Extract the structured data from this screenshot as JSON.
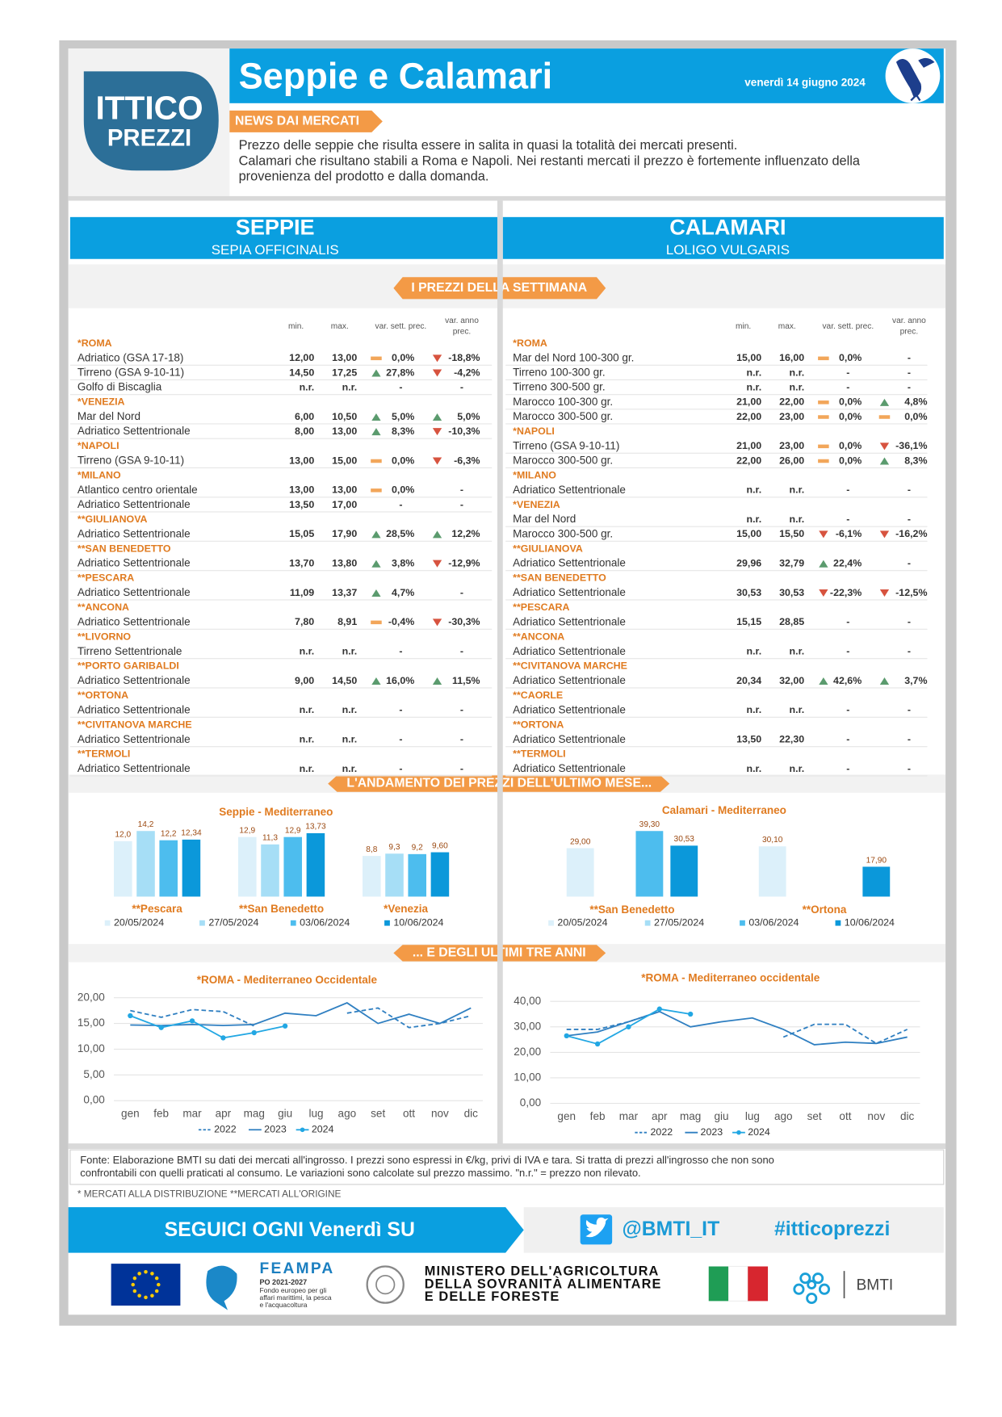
{
  "header": {
    "logo_top": "ITTICO",
    "logo_bottom": "PREZZI",
    "title": "Seppie e Calamari",
    "date": "venerdì 14 giugno 2024"
  },
  "news": {
    "label": "NEWS DAI MERCATI",
    "lines": [
      "Prezzo delle seppie che risulta essere in salita in quasi la totalità dei mercati presenti.",
      "Calamari che risultano stabili a Roma e Napoli. Nei restanti mercati il prezzo è fortemente influenzato della",
      "provenienza del prodotto e dalla domanda."
    ]
  },
  "sections": {
    "seppie": {
      "title": "SEPPIE",
      "subtitle": "SEPIA OFFICINALIS"
    },
    "calamari": {
      "title": "CALAMARI",
      "subtitle": "LOLIGO VULGARIS"
    }
  },
  "week_label": "I PREZZI DELLA SETTIMANA",
  "tables": {
    "seppie": {
      "columns": {
        "min": "min.",
        "max": "max.",
        "week": "var. sett. prec.",
        "year": [
          "var. anno",
          "prec."
        ]
      },
      "rows": [
        {
          "market": "*ROMA"
        },
        {
          "name": "Adriatico (GSA 17-18)",
          "min": "12,00",
          "max": "13,00",
          "week": {
            "trend": "flat",
            "text": "0,0%"
          },
          "year": {
            "trend": "down",
            "text": "-18,8%"
          }
        },
        {
          "name": "Tirreno (GSA 9-10-11)",
          "min": "14,50",
          "max": "17,25",
          "week": {
            "trend": "up",
            "text": "27,8%"
          },
          "year": {
            "trend": "down",
            "text": "-4,2%"
          }
        },
        {
          "name": "Golfo di Biscaglia",
          "min": "n.r.",
          "max": "n.r.",
          "week": "-",
          "year": "-"
        },
        {
          "market": "*VENEZIA"
        },
        {
          "name": "Mar del Nord",
          "min": "6,00",
          "max": "10,50",
          "week": {
            "trend": "up",
            "text": "5,0%"
          },
          "year": {
            "trend": "up",
            "text": "5,0%"
          }
        },
        {
          "name": "Adriatico Settentrionale",
          "min": "8,00",
          "max": "13,00",
          "week": {
            "trend": "up",
            "text": "8,3%"
          },
          "year": {
            "trend": "down",
            "text": "-10,3%"
          }
        },
        {
          "market": "*NAPOLI"
        },
        {
          "name": "Tirreno (GSA 9-10-11)",
          "min": "13,00",
          "max": "15,00",
          "week": {
            "trend": "flat",
            "text": "0,0%"
          },
          "year": {
            "trend": "down",
            "text": "-6,3%"
          }
        },
        {
          "market": "*MILANO"
        },
        {
          "name": "Atlantico centro orientale",
          "min": "13,00",
          "max": "13,00",
          "week": {
            "trend": "flat",
            "text": "0,0%"
          },
          "year": "-"
        },
        {
          "name": "Adriatico Settentrionale",
          "min": "13,50",
          "max": "17,00",
          "week": "-",
          "year": "-"
        },
        {
          "market": "**GIULIANOVA"
        },
        {
          "name": "Adriatico Settentrionale",
          "min": "15,05",
          "max": "17,90",
          "week": {
            "trend": "up",
            "text": "28,5%"
          },
          "year": {
            "trend": "up",
            "text": "12,2%"
          }
        },
        {
          "market": "**SAN BENEDETTO"
        },
        {
          "name": "Adriatico Settentrionale",
          "min": "13,70",
          "max": "13,80",
          "week": {
            "trend": "up",
            "text": "3,8%"
          },
          "year": {
            "trend": "down",
            "text": "-12,9%"
          }
        },
        {
          "market": "**PESCARA"
        },
        {
          "name": "Adriatico Settentrionale",
          "min": "11,09",
          "max": "13,37",
          "week": {
            "trend": "up",
            "text": "4,7%"
          },
          "year": "-"
        },
        {
          "market": "**ANCONA"
        },
        {
          "name": "Adriatico Settentrionale",
          "min": "7,80",
          "max": "8,91",
          "week": {
            "trend": "flat",
            "text": "-0,4%"
          },
          "year": {
            "trend": "down",
            "text": "-30,3%"
          }
        },
        {
          "market": "**LIVORNO"
        },
        {
          "name": "Tirreno Settentrionale",
          "min": "n.r.",
          "max": "n.r.",
          "week": "-",
          "year": "-"
        },
        {
          "market": "**PORTO GARIBALDI"
        },
        {
          "name": "Adriatico Settentrionale",
          "min": "9,00",
          "max": "14,50",
          "week": {
            "trend": "up",
            "text": "16,0%"
          },
          "year": {
            "trend": "up",
            "text": "11,5%"
          }
        },
        {
          "market": "**ORTONA"
        },
        {
          "name": "Adriatico Settentrionale",
          "min": "n.r.",
          "max": "n.r.",
          "week": "-",
          "year": "-"
        },
        {
          "market": "**CIVITANOVA MARCHE"
        },
        {
          "name": "Adriatico Settentrionale",
          "min": "n.r.",
          "max": "n.r.",
          "week": "-",
          "year": "-"
        },
        {
          "market": "**TERMOLI"
        },
        {
          "name": "Adriatico Settentrionale",
          "min": "n.r.",
          "max": "n.r.",
          "week": "-",
          "year": "-"
        }
      ]
    },
    "calamari": {
      "columns": {
        "min": "min.",
        "max": "max.",
        "week": "var. sett. prec.",
        "year": [
          "var. anno",
          "prec."
        ]
      },
      "rows": [
        {
          "market": "*ROMA"
        },
        {
          "name": "Mar del Nord 100-300 gr.",
          "min": "15,00",
          "max": "16,00",
          "week": {
            "trend": "flat",
            "text": "0,0%"
          },
          "year": "-"
        },
        {
          "name": "Tirreno 100-300 gr.",
          "min": "n.r.",
          "max": "n.r.",
          "week": "-",
          "year": "-"
        },
        {
          "name": "Tirreno 300-500 gr.",
          "min": "n.r.",
          "max": "n.r.",
          "week": "-",
          "year": "-"
        },
        {
          "name": "Marocco 100-300 gr.",
          "min": "21,00",
          "max": "22,00",
          "week": {
            "trend": "flat",
            "text": "0,0%"
          },
          "year": {
            "trend": "up",
            "text": "4,8%"
          }
        },
        {
          "name": "Marocco 300-500 gr.",
          "min": "22,00",
          "max": "23,00",
          "week": {
            "trend": "flat",
            "text": "0,0%"
          },
          "year": {
            "trend": "flat",
            "text": "0,0%"
          }
        },
        {
          "market": "*NAPOLI"
        },
        {
          "name": "Tirreno (GSA 9-10-11)",
          "min": "21,00",
          "max": "23,00",
          "week": {
            "trend": "flat",
            "text": "0,0%"
          },
          "year": {
            "trend": "down",
            "text": "-36,1%"
          }
        },
        {
          "name": "Marocco 300-500 gr.",
          "min": "22,00",
          "max": "26,00",
          "week": {
            "trend": "flat",
            "text": "0,0%"
          },
          "year": {
            "trend": "up",
            "text": "8,3%"
          }
        },
        {
          "market": "*MILANO"
        },
        {
          "name": "Adriatico Settentrionale",
          "min": "n.r.",
          "max": "n.r.",
          "week": "-",
          "year": "-"
        },
        {
          "market": "*VENEZIA"
        },
        {
          "name": "Mar del Nord",
          "min": "n.r.",
          "max": "n.r.",
          "week": "-",
          "year": "-"
        },
        {
          "name": "Marocco 300-500 gr.",
          "min": "15,00",
          "max": "15,50",
          "week": {
            "trend": "down",
            "text": "-6,1%"
          },
          "year": {
            "trend": "down",
            "text": "-16,2%"
          }
        },
        {
          "market": "**GIULIANOVA"
        },
        {
          "name": "Adriatico Settentrionale",
          "min": "29,96",
          "max": "32,79",
          "week": {
            "trend": "up",
            "text": "22,4%"
          },
          "year": "-"
        },
        {
          "market": "**SAN BENEDETTO"
        },
        {
          "name": "Adriatico Settentrionale",
          "min": "30,53",
          "max": "30,53",
          "week": {
            "trend": "down",
            "text": "-22,3%"
          },
          "year": {
            "trend": "down",
            "text": "-12,5%"
          }
        },
        {
          "market": "**PESCARA"
        },
        {
          "name": "Adriatico Settentrionale",
          "min": "15,15",
          "max": "28,85",
          "week": "-",
          "year": "-"
        },
        {
          "market": "**ANCONA"
        },
        {
          "name": "Adriatico Settentrionale",
          "min": "n.r.",
          "max": "n.r.",
          "week": "-",
          "year": "-"
        },
        {
          "market": "**CIVITANOVA MARCHE"
        },
        {
          "name": "Adriatico Settentrionale",
          "min": "20,34",
          "max": "32,00",
          "week": {
            "trend": "up",
            "text": "42,6%"
          },
          "year": {
            "trend": "up",
            "text": "3,7%"
          }
        },
        {
          "market": "**CAORLE"
        },
        {
          "name": "Adriatico Settentrionale",
          "min": "n.r.",
          "max": "n.r.",
          "week": "-",
          "year": "-"
        },
        {
          "market": "**ORTONA"
        },
        {
          "name": "Adriatico Settentrionale",
          "min": "13,50",
          "max": "22,30",
          "week": "-",
          "year": "-"
        },
        {
          "market": "**TERMOLI"
        },
        {
          "name": "Adriatico Settentrionale",
          "min": "n.r.",
          "max": "n.r.",
          "week": "-",
          "year": "-"
        }
      ]
    }
  },
  "month_label": "L'ANDAMENTO DEI PREZZI DELL'ULTIMO MESE...",
  "years_label": "... E DEGLI ULTIMI TRE ANNI",
  "chart_data": [
    {
      "type": "bar",
      "title": "Seppie - Mediterraneo",
      "categories": [
        "**Pescara",
        "**San Benedetto",
        "*Venezia"
      ],
      "series": [
        {
          "name": "20/05/2024",
          "color": "#dcf0fa",
          "values": [
            12.0,
            12.9,
            8.8
          ],
          "value_labels": [
            "12,0",
            "12,9",
            "8,8"
          ]
        },
        {
          "name": "27/05/2024",
          "color": "#a6def6",
          "values": [
            14.2,
            11.3,
            9.3
          ],
          "value_labels": [
            "14,2",
            "11,3",
            "9,3"
          ]
        },
        {
          "name": "03/06/2024",
          "color": "#4dbdee",
          "values": [
            12.2,
            12.9,
            9.2
          ],
          "value_labels": [
            "12,2",
            "12,9",
            "9,2"
          ]
        },
        {
          "name": "10/06/2024",
          "color": "#0b98da",
          "values": [
            12.34,
            13.73,
            9.6
          ],
          "value_labels": [
            "12,34",
            "13,73",
            "9,60"
          ]
        }
      ]
    },
    {
      "type": "bar",
      "title": "Calamari - Mediterraneo",
      "categories": [
        "**San Benedetto",
        "**Ortona"
      ],
      "series": [
        {
          "name": "20/05/2024",
          "color": "#dcf0fa",
          "values": [
            29.0,
            30.1
          ],
          "value_labels": [
            "29,00",
            "30,10"
          ]
        },
        {
          "name": "27/05/2024",
          "color": "#a6def6",
          "values": [
            null,
            null
          ],
          "value_labels": [
            null,
            null
          ]
        },
        {
          "name": "03/06/2024",
          "color": "#4dbdee",
          "values": [
            39.3,
            null
          ],
          "value_labels": [
            "39,30",
            null
          ]
        },
        {
          "name": "10/06/2024",
          "color": "#0b98da",
          "values": [
            30.53,
            17.9
          ],
          "value_labels": [
            "30,53",
            "17,90"
          ]
        }
      ]
    },
    {
      "type": "line",
      "title": "*ROMA - Mediterraneo Occidentale",
      "categories": [
        "gen",
        "feb",
        "mar",
        "apr",
        "mag",
        "giu",
        "lug",
        "ago",
        "set",
        "ott",
        "nov",
        "dic"
      ],
      "ylim": [
        0,
        20
      ],
      "yticks": [
        {
          "value": 0,
          "label": "0,00"
        },
        {
          "value": 5,
          "label": "5,00"
        },
        {
          "value": 10,
          "label": "10,00"
        },
        {
          "value": 15,
          "label": "15,00"
        },
        {
          "value": 20,
          "label": "20,00"
        }
      ],
      "grid": true,
      "series": [
        {
          "name": "2022",
          "color": "#2f7fc1",
          "style": "dashed",
          "marker": false,
          "values": [
            17.5,
            16.2,
            17.7,
            17.3,
            14.5,
            null,
            null,
            17.0,
            18.0,
            14.2,
            15.0,
            16.5
          ]
        },
        {
          "name": "2023",
          "color": "#2f7fc1",
          "style": "solid",
          "marker": false,
          "values": [
            14.7,
            14.6,
            14.8,
            14.6,
            14.8,
            17.0,
            16.5,
            19.0,
            15.0,
            16.8,
            15.0,
            18.0
          ]
        },
        {
          "name": "2024",
          "color": "#22a7e3",
          "style": "solid",
          "marker": true,
          "values": [
            16.5,
            14.2,
            15.5,
            12.2,
            13.2,
            14.5,
            null,
            null,
            null,
            null,
            null,
            null
          ]
        }
      ]
    },
    {
      "type": "line",
      "title": "*ROMA - Mediterraneo occidentale",
      "categories": [
        "gen",
        "feb",
        "mar",
        "apr",
        "mag",
        "giu",
        "lug",
        "ago",
        "set",
        "ott",
        "nov",
        "dic"
      ],
      "ylim": [
        0,
        40
      ],
      "yticks": [
        {
          "value": 0,
          "label": "0,00"
        },
        {
          "value": 10,
          "label": "10,00"
        },
        {
          "value": 20,
          "label": "20,00"
        },
        {
          "value": 30,
          "label": "30,00"
        },
        {
          "value": 40,
          "label": "40,00"
        }
      ],
      "grid": true,
      "series": [
        {
          "name": "2022",
          "color": "#2f7fc1",
          "style": "dashed",
          "marker": false,
          "values": [
            29.0,
            29.0,
            32.0,
            36.0,
            null,
            null,
            null,
            26.0,
            31.0,
            31.0,
            23.5,
            29.0
          ]
        },
        {
          "name": "2023",
          "color": "#2f7fc1",
          "style": "solid",
          "marker": false,
          "values": [
            26.5,
            28.0,
            32.0,
            36.0,
            30.0,
            32.0,
            33.5,
            29.0,
            23.0,
            24.0,
            23.5,
            26.0
          ]
        },
        {
          "name": "2024",
          "color": "#22a7e3",
          "style": "solid",
          "marker": true,
          "values": [
            26.5,
            23.3,
            30.0,
            37.0,
            35.0,
            null,
            null,
            null,
            null,
            null,
            null,
            null
          ]
        }
      ]
    }
  ],
  "footer": {
    "source": [
      "Fonte: Elaborazione BMTI su dati dei mercati all'ingrosso. I prezzi sono espressi in €/kg, privi di IVA e tara. Si tratta di prezzi all'ingrosso che non sono",
      "confrontabili con quelli praticati al consumo. Le variazioni sono calcolate sul prezzo massimo. \"n.r.\" = prezzo non rilevato."
    ],
    "note": "* MERCATI ALLA DISTRIBUZIONE **MERCATI ALL'ORIGINE",
    "follow": "SEGUICI OGNI Venerdì SU",
    "twitter": "@BMTI_IT",
    "hashtag": "#itticoprezzi",
    "feampa": {
      "name": "FEAMPA",
      "program": "PO 2021-2027",
      "desc": [
        "Fondo europeo per gli",
        "affari marittimi, la pesca",
        "e l'acquacoltura"
      ]
    },
    "ministry": [
      "MINISTERO DELL'AGRICOLTURA",
      "DELLA SOVRANITÀ ALIMENTARE",
      "E DELLE FORESTE"
    ],
    "bmti": "BMTI"
  }
}
